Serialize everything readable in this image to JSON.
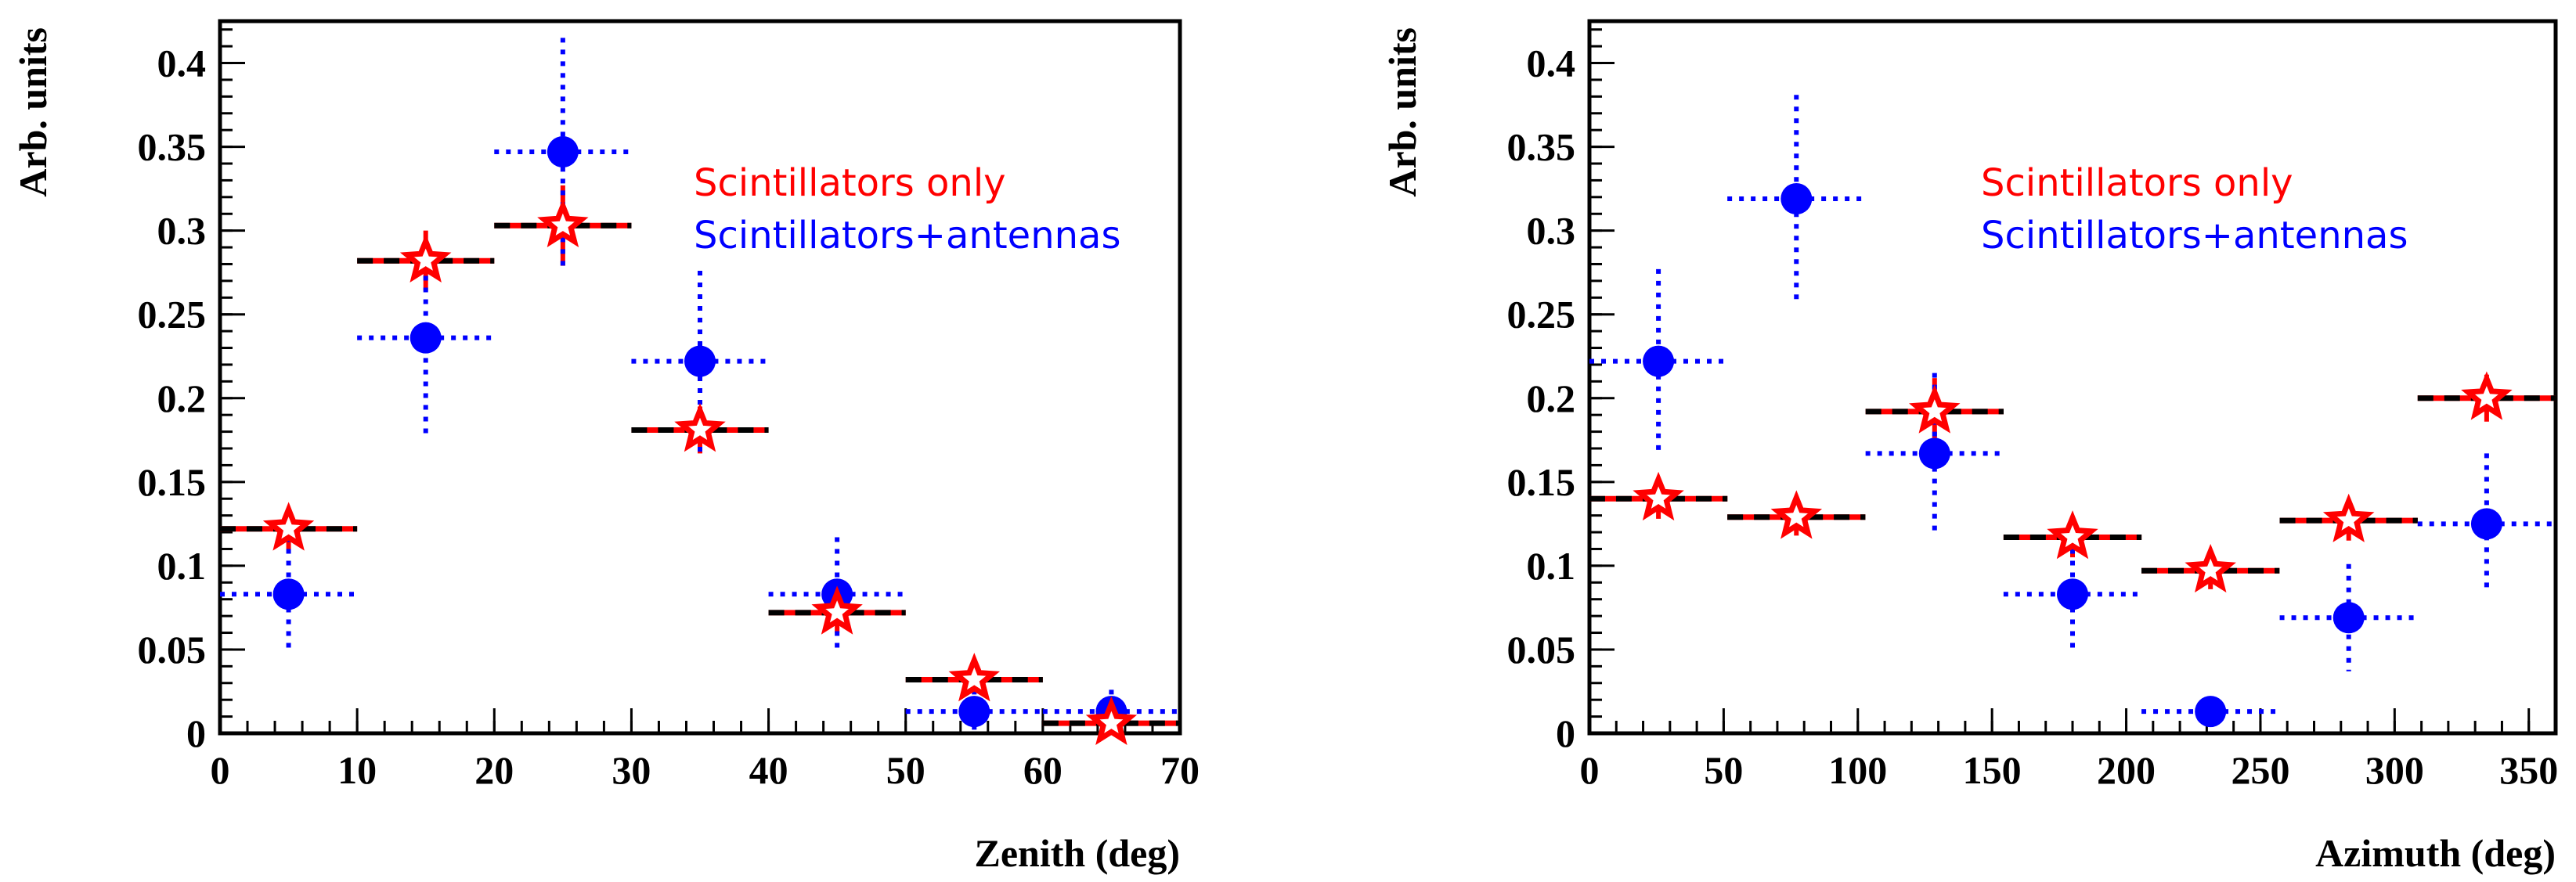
{
  "chart_data": [
    {
      "type": "scatter",
      "xlabel": "Zenith (deg)",
      "ylabel": "Arb. units",
      "xlim": [
        0,
        70
      ],
      "ylim": [
        0,
        0.425
      ],
      "x_ticks": [
        0,
        10,
        20,
        30,
        40,
        50,
        60,
        70
      ],
      "x_tick_labels": [
        "0",
        "10",
        "20",
        "30",
        "40",
        "50",
        "60",
        "70"
      ],
      "y_ticks": [
        0,
        0.05,
        0.1,
        0.15,
        0.2,
        0.25,
        0.3,
        0.35,
        0.4
      ],
      "y_tick_labels": [
        "0",
        "0.05",
        "0.1",
        "0.15",
        "0.2",
        "0.25",
        "0.3",
        "0.35",
        "0.4"
      ],
      "x_minor_step": 2,
      "y_minor_step": 0.01,
      "legend": [
        "Scintillators only",
        "Scintillators+antennas"
      ],
      "series": [
        {
          "name": "Scintillators only",
          "color": "#ff0000",
          "marker": "open-star",
          "bin_width": 10,
          "x": [
            5,
            15,
            25,
            35,
            45,
            55,
            65
          ],
          "y": [
            0.122,
            0.282,
            0.303,
            0.181,
            0.072,
            0.032,
            0.006
          ],
          "yerr": [
            0.012,
            0.018,
            0.024,
            0.014,
            0.012,
            0.008,
            0.004
          ]
        },
        {
          "name": "Scintillators+antennas",
          "color": "#0000ff",
          "marker": "filled-circle",
          "bin_width": 10,
          "x": [
            5,
            15,
            25,
            35,
            45,
            55,
            65
          ],
          "y": [
            0.083,
            0.236,
            0.347,
            0.222,
            0.083,
            0.013,
            0.013
          ],
          "yerr": [
            0.034,
            0.058,
            0.068,
            0.054,
            0.034,
            0.013,
            0.013
          ]
        }
      ]
    },
    {
      "type": "scatter",
      "xlabel": "Azimuth (deg)",
      "ylabel": "Arb. units",
      "xlim": [
        0,
        360
      ],
      "ylim": [
        0,
        0.425
      ],
      "x_ticks": [
        0,
        50,
        100,
        150,
        200,
        250,
        300,
        350
      ],
      "x_tick_labels": [
        "0",
        "50",
        "100",
        "150",
        "200",
        "250",
        "300",
        "350"
      ],
      "y_ticks": [
        0,
        0.05,
        0.1,
        0.15,
        0.2,
        0.25,
        0.3,
        0.35,
        0.4
      ],
      "y_tick_labels": [
        "0",
        "0.05",
        "0.1",
        "0.15",
        "0.2",
        "0.25",
        "0.3",
        "0.35",
        "0.4"
      ],
      "x_minor_step": 10,
      "y_minor_step": 0.01,
      "legend": [
        "Scintillators only",
        "Scintillators+antennas"
      ],
      "series": [
        {
          "name": "Scintillators only",
          "color": "#ff0000",
          "marker": "open-star",
          "bin_width": 51.43,
          "x": [
            25.7,
            77.1,
            128.6,
            180,
            231.4,
            282.9,
            334.3
          ],
          "y": [
            0.14,
            0.129,
            0.192,
            0.117,
            0.097,
            0.127,
            0.2
          ],
          "yerr": [
            0.012,
            0.011,
            0.02,
            0.012,
            0.011,
            0.012,
            0.014
          ]
        },
        {
          "name": "Scintillators+antennas",
          "color": "#0000ff",
          "marker": "filled-circle",
          "bin_width": 51.43,
          "x": [
            25.7,
            77.1,
            128.6,
            180,
            231.4,
            282.9,
            334.3
          ],
          "y": [
            0.222,
            0.319,
            0.167,
            0.083,
            0.013,
            0.069,
            0.125
          ],
          "yerr": [
            0.055,
            0.062,
            0.048,
            0.034,
            0.008,
            0.032,
            0.042
          ]
        }
      ]
    }
  ]
}
